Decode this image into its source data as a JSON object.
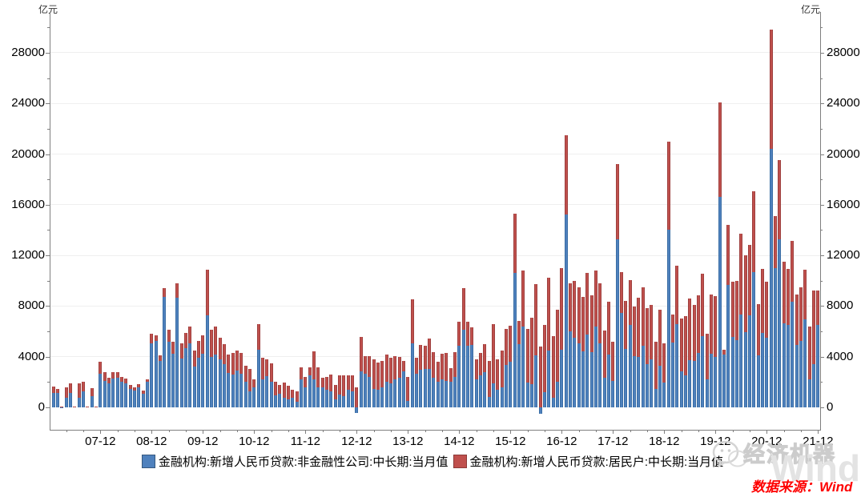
{
  "units": {
    "left": "亿元",
    "right": "亿元"
  },
  "legend": [
    {
      "label": "金融机构:新增人民币贷款:非金融性公司:中长期:当月值",
      "color": "#4f81bd"
    },
    {
      "label": "金融机构:新增人民币贷款:居民户:中长期:当月值",
      "color": "#c0504d"
    }
  ],
  "watermark": {
    "brand": "经济机器",
    "wind": "Wind",
    "icon": "wechat-icon"
  },
  "source_note": "数据来源：Wind",
  "chart_data": {
    "type": "bar",
    "stacked": true,
    "title": "",
    "xlabel": "",
    "ylabel": "亿元",
    "grid": "horizontal-major",
    "legend_position": "bottom-center",
    "y_major_ticks": [
      0,
      4000,
      8000,
      12000,
      16000,
      20000,
      24000,
      28000
    ],
    "y_minor_step": 2000,
    "ylim": [
      -1800,
      31200
    ],
    "x_tick_labels": [
      "07-12",
      "08-12",
      "09-12",
      "10-12",
      "11-12",
      "12-12",
      "13-12",
      "14-12",
      "15-12",
      "16-12",
      "17-12",
      "18-12",
      "19-12",
      "20-12",
      "21-12"
    ],
    "categories": [
      "2007-01",
      "2007-02",
      "2007-03",
      "2007-04",
      "2007-05",
      "2007-06",
      "2007-07",
      "2007-08",
      "2007-09",
      "2007-10",
      "2007-11",
      "2007-12",
      "2008-01",
      "2008-02",
      "2008-03",
      "2008-04",
      "2008-05",
      "2008-06",
      "2008-07",
      "2008-08",
      "2008-09",
      "2008-10",
      "2008-11",
      "2008-12",
      "2009-01",
      "2009-02",
      "2009-03",
      "2009-04",
      "2009-05",
      "2009-06",
      "2009-07",
      "2009-08",
      "2009-09",
      "2009-10",
      "2009-11",
      "2009-12",
      "2010-01",
      "2010-02",
      "2010-03",
      "2010-04",
      "2010-05",
      "2010-06",
      "2010-07",
      "2010-08",
      "2010-09",
      "2010-10",
      "2010-11",
      "2010-12",
      "2011-01",
      "2011-02",
      "2011-03",
      "2011-04",
      "2011-05",
      "2011-06",
      "2011-07",
      "2011-08",
      "2011-09",
      "2011-10",
      "2011-11",
      "2011-12",
      "2012-01",
      "2012-02",
      "2012-03",
      "2012-04",
      "2012-05",
      "2012-06",
      "2012-07",
      "2012-08",
      "2012-09",
      "2012-10",
      "2012-11",
      "2012-12",
      "2013-01",
      "2013-02",
      "2013-03",
      "2013-04",
      "2013-05",
      "2013-06",
      "2013-07",
      "2013-08",
      "2013-09",
      "2013-10",
      "2013-11",
      "2013-12",
      "2014-01",
      "2014-02",
      "2014-03",
      "2014-04",
      "2014-05",
      "2014-06",
      "2014-07",
      "2014-08",
      "2014-09",
      "2014-10",
      "2014-11",
      "2014-12",
      "2015-01",
      "2015-02",
      "2015-03",
      "2015-04",
      "2015-05",
      "2015-06",
      "2015-07",
      "2015-08",
      "2015-09",
      "2015-10",
      "2015-11",
      "2015-12",
      "2016-01",
      "2016-02",
      "2016-03",
      "2016-04",
      "2016-05",
      "2016-06",
      "2016-07",
      "2016-08",
      "2016-09",
      "2016-10",
      "2016-11",
      "2016-12",
      "2017-01",
      "2017-02",
      "2017-03",
      "2017-04",
      "2017-05",
      "2017-06",
      "2017-07",
      "2017-08",
      "2017-09",
      "2017-10",
      "2017-11",
      "2017-12",
      "2018-01",
      "2018-02",
      "2018-03",
      "2018-04",
      "2018-05",
      "2018-06",
      "2018-07",
      "2018-08",
      "2018-09",
      "2018-10",
      "2018-11",
      "2018-12",
      "2019-01",
      "2019-02",
      "2019-03",
      "2019-04",
      "2019-05",
      "2019-06",
      "2019-07",
      "2019-08",
      "2019-09",
      "2019-10",
      "2019-11",
      "2019-12",
      "2020-01",
      "2020-02",
      "2020-03",
      "2020-04",
      "2020-05",
      "2020-06",
      "2020-07",
      "2020-08",
      "2020-09",
      "2020-10",
      "2020-11",
      "2020-12",
      "2021-01",
      "2021-02",
      "2021-03",
      "2021-04",
      "2021-05",
      "2021-06",
      "2021-07",
      "2021-08",
      "2021-09",
      "2021-10",
      "2021-11",
      "2021-12"
    ],
    "series": [
      {
        "name": "金融机构:新增人民币贷款:非金融性公司:中长期:当月值",
        "color": "#4f81bd",
        "values": [
          1150,
          1160,
          30,
          760,
          1160,
          40,
          760,
          1260,
          50,
          900,
          40,
          2650,
          2100,
          1900,
          2300,
          2350,
          2000,
          1900,
          1450,
          1300,
          1600,
          1100,
          2040,
          5050,
          5230,
          3680,
          8740,
          5200,
          4250,
          8640,
          3850,
          4650,
          5070,
          3250,
          3920,
          4250,
          7270,
          4000,
          4150,
          3800,
          3400,
          2700,
          2600,
          2900,
          2635,
          2000,
          1265,
          1580,
          4530,
          2210,
          2465,
          2000,
          950,
          1055,
          740,
          630,
          740,
          420,
          2210,
          1580,
          2530,
          2210,
          1580,
          1580,
          1370,
          1265,
          630,
          990,
          905,
          1370,
          1265,
          -420,
          2850,
          2635,
          2420,
          1475,
          1370,
          1580,
          2040,
          1895,
          2210,
          2360,
          2845,
          530,
          5040,
          2635,
          2950,
          3050,
          3050,
          2320,
          2000,
          2210,
          2105,
          2000,
          2420,
          4845,
          6120,
          4845,
          4950,
          2210,
          2500,
          2800,
          845,
          1900,
          1370,
          1580,
          3370,
          3580,
          10600,
          5020,
          6375,
          1933,
          1825,
          4105,
          -500,
          1209,
          4466,
          728,
          2018,
          4530,
          15200,
          6018,
          5482,
          5048,
          4396,
          5778,
          4332,
          6354,
          5029,
          2366,
          4178,
          2059,
          13300,
          7447,
          4615,
          6534,
          4031,
          4001,
          4875,
          3425,
          3800,
          1429,
          3295,
          1976,
          14000,
          5127,
          6573,
          2823,
          2524,
          3753,
          3678,
          4285,
          5637,
          2216,
          4206,
          3978,
          16600,
          4157,
          9643,
          5547,
          5305,
          7348,
          5968,
          7252,
          10680,
          4113,
          5887,
          5500,
          20400,
          11000,
          13300,
          6605,
          6528,
          8367,
          4937,
          5215,
          6948,
          2190,
          3417,
          6500
        ]
      },
      {
        "name": "金融机构:新增人民币贷款:居民户:中长期:当月值",
        "color": "#c0504d",
        "values": [
          470,
          310,
          20,
          820,
          740,
          30,
          1110,
          780,
          40,
          600,
          30,
          950,
          700,
          450,
          500,
          450,
          400,
          350,
          350,
          250,
          250,
          200,
          150,
          750,
          470,
          420,
          660,
          900,
          950,
          1150,
          1180,
          1200,
          1300,
          1250,
          1300,
          1450,
          3580,
          2100,
          2250,
          1700,
          1600,
          1500,
          1700,
          1600,
          1645,
          1300,
          1790,
          630,
          2060,
          1690,
          1330,
          1475,
          1090,
          735,
          1220,
          1055,
          630,
          845,
          950,
          840,
          630,
          2215,
          1580,
          740,
          1050,
          1310,
          1160,
          1540,
          1625,
          1160,
          1235,
          1550,
          2730,
          1410,
          1625,
          2315,
          2170,
          2100,
          2130,
          2045,
          1855,
          1645,
          835,
          1890,
          3510,
          1265,
          2000,
          1835,
          2365,
          2045,
          1580,
          2000,
          2215,
          1095,
          1940,
          1900,
          3290,
          1900,
          1350,
          1580,
          1800,
          2200,
          2845,
          4700,
          2420,
          2890,
          2845,
          2850,
          4680,
          1820,
          4400,
          4280,
          5281,
          5639,
          4773,
          5286,
          5741,
          4891,
          5692,
          6440,
          6293,
          3804,
          4503,
          4441,
          4326,
          4833,
          4544,
          4470,
          4786,
          3710,
          4178,
          3112,
          5910,
          3220,
          3770,
          3543,
          3923,
          4634,
          4576,
          4415,
          4309,
          3730,
          4391,
          3079,
          6969,
          2226,
          4605,
          4165,
          4677,
          4858,
          4417,
          4540,
          4943,
          3587,
          4689,
          4824,
          7491,
          371,
          4738,
          4389,
          4662,
          6349,
          6067,
          5571,
          6362,
          4059,
          5049,
          4392,
          9448,
          4113,
          6239,
          4918,
          4426,
          4770,
          3974,
          4259,
          3890,
          4221,
          5821,
          2700
        ]
      }
    ]
  }
}
